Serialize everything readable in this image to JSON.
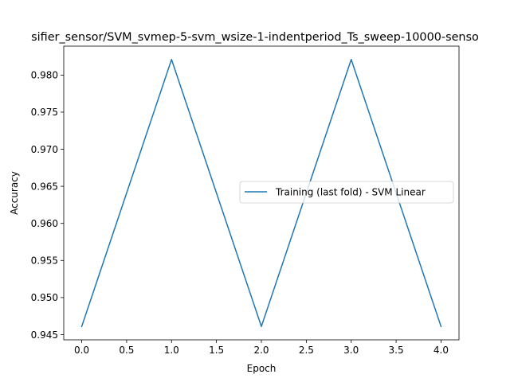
{
  "chart_data": {
    "type": "line",
    "title": "sifier_sensor/SVM_svmep-5-svm_wsize-1-indentperiod_Ts_sweep-10000-senso",
    "xlabel": "Epoch",
    "ylabel": "Accuracy",
    "xlim": [
      -0.2,
      4.2
    ],
    "ylim": [
      0.9443,
      0.9839
    ],
    "xticks": [
      0.0,
      0.5,
      1.0,
      1.5,
      2.0,
      2.5,
      3.0,
      3.5,
      4.0
    ],
    "xtick_labels": [
      "0.0",
      "0.5",
      "1.0",
      "1.5",
      "2.0",
      "2.5",
      "3.0",
      "3.5",
      "4.0"
    ],
    "yticks": [
      0.945,
      0.95,
      0.955,
      0.96,
      0.965,
      0.97,
      0.975,
      0.98
    ],
    "ytick_labels": [
      "0.945",
      "0.950",
      "0.955",
      "0.960",
      "0.965",
      "0.970",
      "0.975",
      "0.980"
    ],
    "grid": false,
    "legend_position": "center-right",
    "series": [
      {
        "name": "Training (last fold) - SVM Linear",
        "color": "#1f77b4",
        "x": [
          0,
          1,
          2,
          3,
          4
        ],
        "y": [
          0.9461,
          0.9821,
          0.9461,
          0.9821,
          0.9461
        ]
      }
    ]
  }
}
